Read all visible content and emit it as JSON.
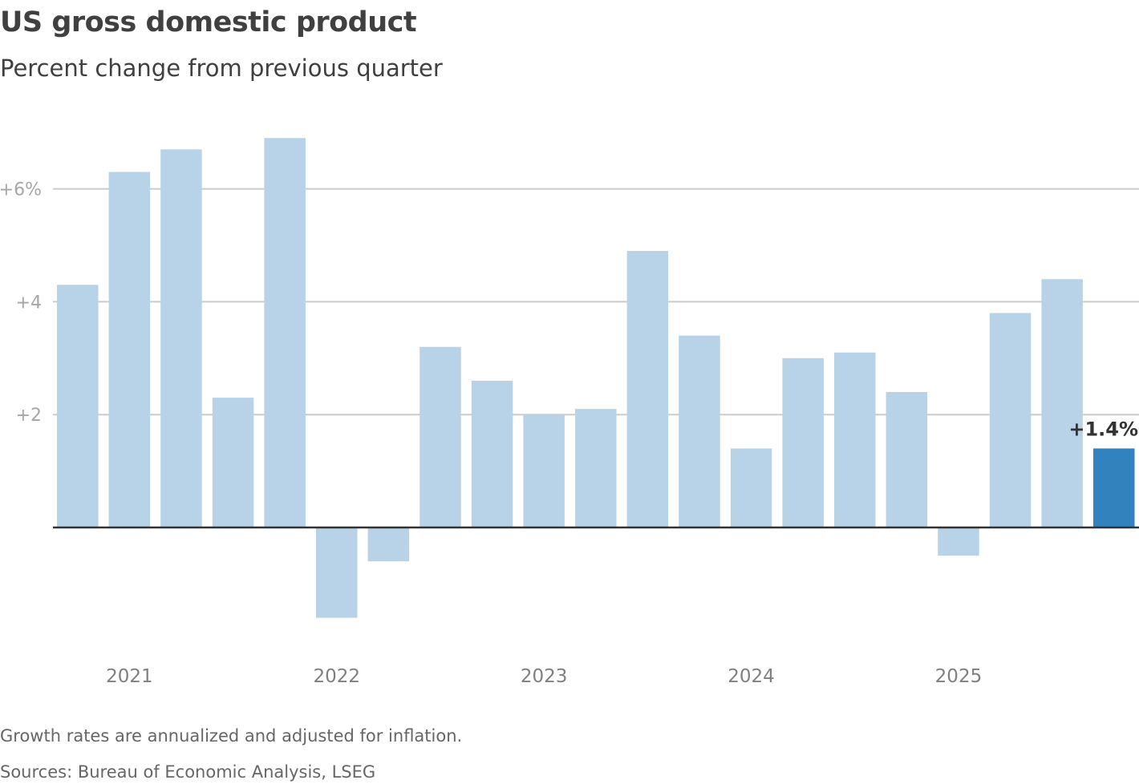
{
  "chart_data": {
    "type": "bar",
    "title": "US gross domestic product",
    "subtitle": "Percent change from previous quarter",
    "categories": [
      "2020 Q4",
      "2021 Q1",
      "2021 Q2",
      "2021 Q3",
      "2021 Q4",
      "2022 Q1",
      "2022 Q2",
      "2022 Q3",
      "2022 Q4",
      "2023 Q1",
      "2023 Q2",
      "2023 Q3",
      "2023 Q4",
      "2024 Q1",
      "2024 Q2",
      "2024 Q3",
      "2024 Q4",
      "2025 Q1",
      "2025 Q2",
      "2025 Q3",
      "2025 Q4"
    ],
    "values": [
      4.3,
      6.3,
      6.7,
      2.3,
      6.9,
      -1.6,
      -0.6,
      3.2,
      2.6,
      2.0,
      2.1,
      4.9,
      3.4,
      1.4,
      3.0,
      3.1,
      2.4,
      -0.5,
      3.8,
      4.4,
      1.4
    ],
    "x_ticks": [
      {
        "label": "2021",
        "category": "2021 Q1"
      },
      {
        "label": "2022",
        "category": "2022 Q1"
      },
      {
        "label": "2023",
        "category": "2023 Q1"
      },
      {
        "label": "2024",
        "category": "2024 Q1"
      },
      {
        "label": "2025",
        "category": "2025 Q1"
      }
    ],
    "y_ticks": [
      {
        "value": 2,
        "label": "+2"
      },
      {
        "value": 4,
        "label": "+4"
      },
      {
        "value": 6,
        "label": "+6%"
      }
    ],
    "ylim": [
      -2.0,
      7.0
    ],
    "grid": true,
    "highlight": {
      "index": 20,
      "label": "+1.4%"
    },
    "colors": {
      "bar": "#b8d3e7",
      "highlight": "#3282bd",
      "grid": "#cccccc",
      "zero_line": "#333333"
    }
  },
  "notes": {
    "footnote": "Growth rates are annualized and adjusted for inflation.",
    "sources": "Sources: Bureau of Economic Analysis, LSEG"
  }
}
